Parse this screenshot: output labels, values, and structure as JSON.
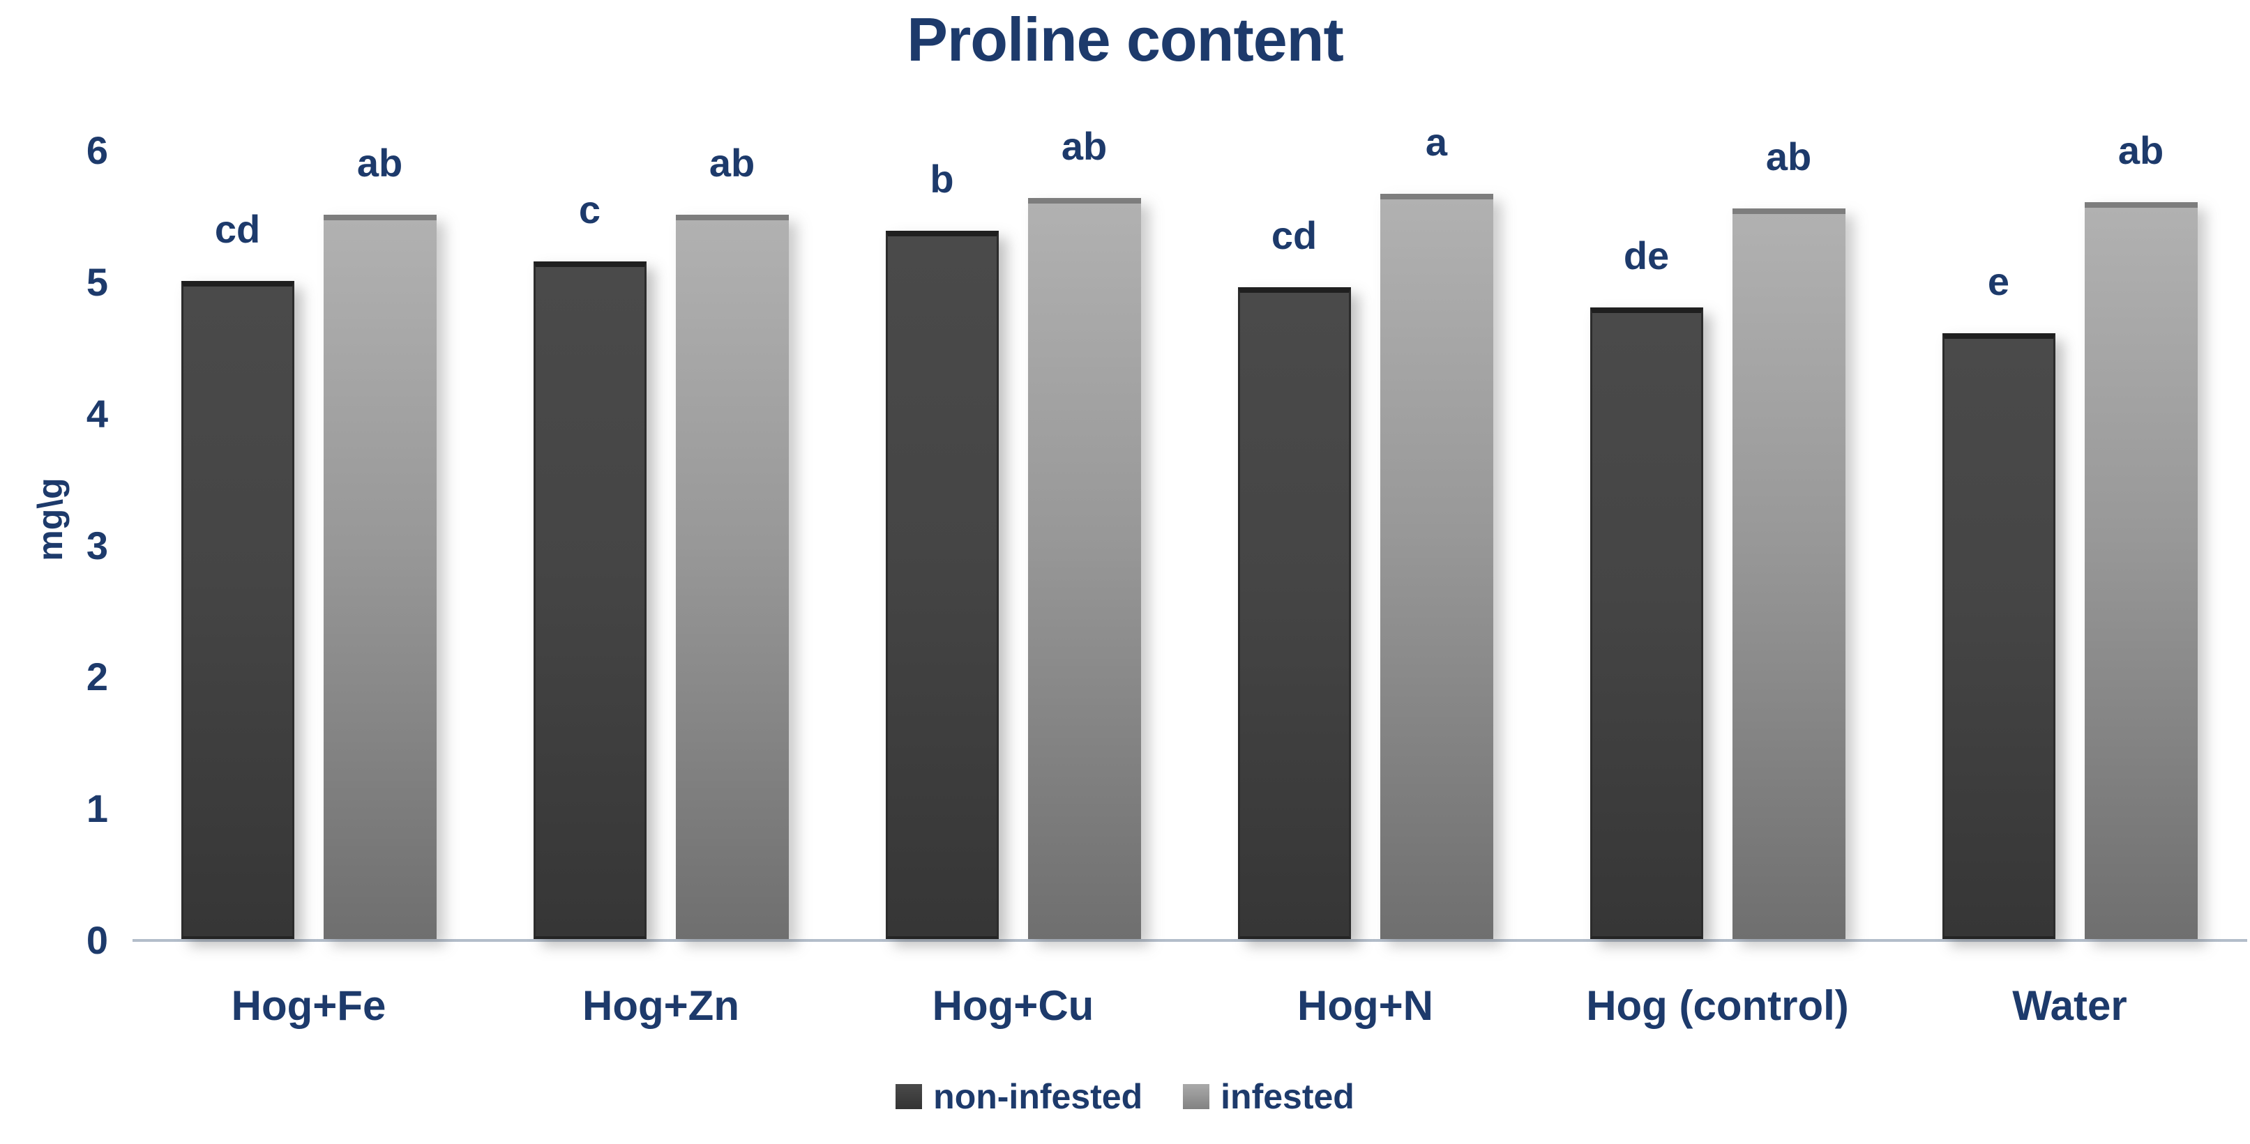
{
  "chart_data": {
    "type": "bar",
    "title": "Proline content",
    "ylabel": "mg\\g",
    "xlabel": "",
    "ylim": [
      0,
      6
    ],
    "y_ticks": [
      0,
      1,
      2,
      3,
      4,
      5,
      6
    ],
    "grid": false,
    "legend_position": "bottom",
    "categories": [
      "Hog+Fe",
      "Hog+Zn",
      "Hog+Cu",
      "Hog+N",
      "Hog (control)",
      "Water"
    ],
    "series": [
      {
        "name": "non-infested",
        "values": [
          5.0,
          5.15,
          5.38,
          4.95,
          4.8,
          4.6
        ],
        "significance_letters": [
          "cd",
          "c",
          "b",
          "cd",
          "de",
          "e"
        ]
      },
      {
        "name": "infested",
        "values": [
          5.5,
          5.5,
          5.63,
          5.66,
          5.55,
          5.6
        ],
        "significance_letters": [
          "ab",
          "ab",
          "ab",
          "a",
          "ab",
          "ab"
        ]
      }
    ]
  },
  "colors": {
    "background": "#ffffff",
    "title_text": "#1d3a6b",
    "axis_text": "#1d3a6b",
    "annotation_text": "#1d3a6b",
    "axis_line": "#b3bdca",
    "non_infested_bar": "#424242",
    "infested_bar": "#9a9a9a"
  }
}
